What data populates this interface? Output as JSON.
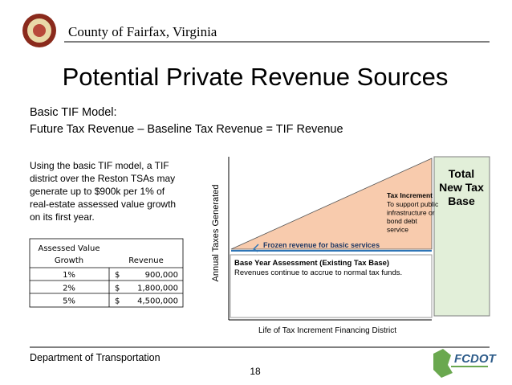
{
  "header": {
    "org": "County of Fairfax, Virginia"
  },
  "title": "Potential Private Revenue Sources",
  "subtitle": [
    "Basic TIF Model:",
    "Future Tax Revenue – Baseline Tax Revenue = TIF Revenue"
  ],
  "paragraph": [
    "Using the basic TIF model, a TIF",
    "district over the Reston TSAs may",
    "generate up to $900k per 1% of",
    "real-estate assessed value growth",
    "on its first year."
  ],
  "table": {
    "header": [
      [
        "Assessed Value",
        "Growth"
      ],
      "Revenue"
    ],
    "rows": [
      [
        "1%",
        "$",
        "900,000"
      ],
      [
        "2%",
        "$",
        "1,800,000"
      ],
      [
        "5%",
        "$",
        "4,500,000"
      ]
    ]
  },
  "diagram": {
    "y_axis": "Annual Taxes Generated",
    "x_axis": "Life of Tax Increment Financing District",
    "increment_title": "Tax Increment",
    "increment_text": [
      "To support public",
      "infrastructure or",
      "bond debt",
      "service"
    ],
    "frozen": "Frozen revenue for basic services",
    "base_title": "Base Year Assessment (Existing Tax Base)",
    "base_text": "Revenues continue to accrue to normal tax funds.",
    "total": [
      "Total",
      "New Tax",
      "Base"
    ]
  },
  "footer": {
    "department": "Department of Transportation",
    "page": "18",
    "logo": "FCDOT"
  }
}
